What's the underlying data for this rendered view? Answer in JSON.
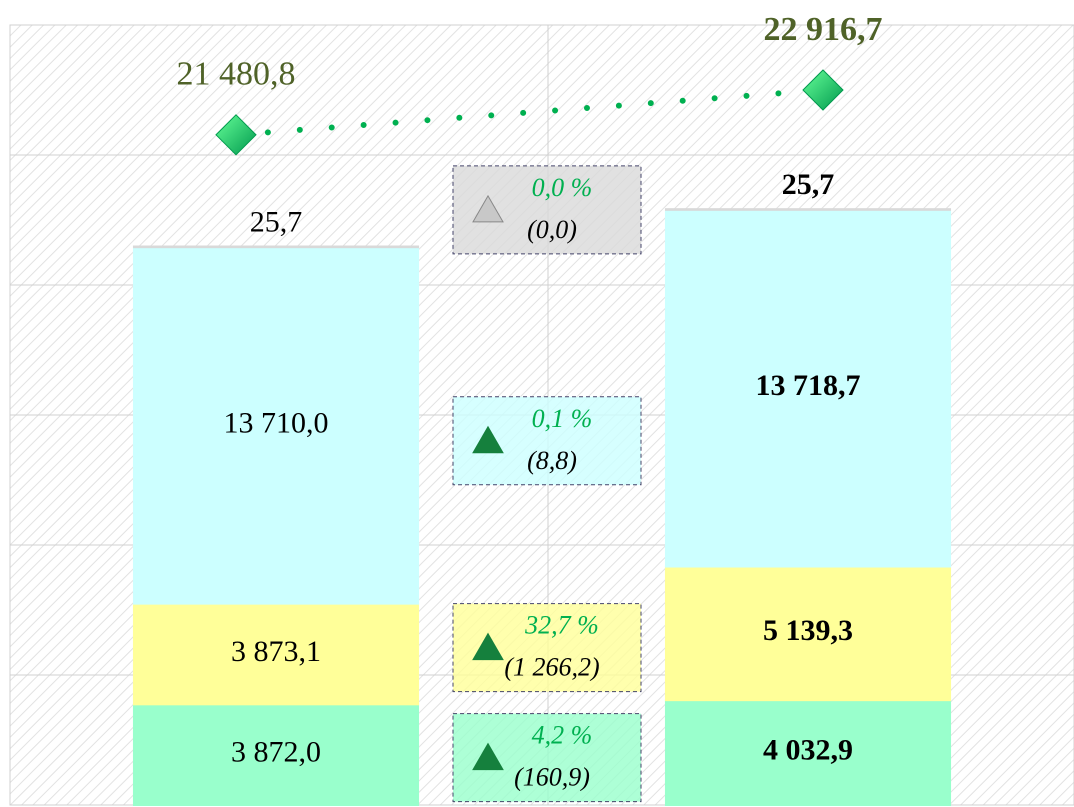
{
  "chart_data": {
    "type": "bar",
    "stacked": true,
    "categories": [
      null,
      null
    ],
    "ylim": [
      0,
      30000
    ],
    "yticks": [
      0,
      5000,
      10000,
      15000,
      20000,
      25000,
      30000
    ],
    "y2lim": [
      0,
      25000
    ],
    "grid": true,
    "series": [
      {
        "values": [
          3872.0,
          4032.9
        ],
        "value_labels": [
          "3 872,0",
          "4 032,9"
        ],
        "color": "#99ffcc",
        "change": 4.2,
        "change_label": "4,2 %",
        "diff": 160.9,
        "diff_label": "(160,9)"
      },
      {
        "values": [
          3873.1,
          5139.3
        ],
        "value_labels": [
          "3 873,1",
          "5 139,3"
        ],
        "color": "#ffff99",
        "change": 32.7,
        "change_label": "32,7 %",
        "diff": 1266.2,
        "diff_label": "(1 266,2)"
      },
      {
        "values": [
          13710.0,
          13718.7
        ],
        "value_labels": [
          "13 710,0",
          "13 718,7"
        ],
        "color": "#ccffff",
        "change": 0.1,
        "change_label": "0,1 %",
        "diff": 8.8,
        "diff_label": "(8,8)"
      },
      {
        "values": [
          25.7,
          25.7
        ],
        "value_labels": [
          "25,7",
          "25,7"
        ],
        "color": "#d9d9d9",
        "change": 0.0,
        "change_label": "0,0 %",
        "diff": 0.0,
        "diff_label": "(0,0)"
      },
      {
        "type": "line",
        "axis": "y2",
        "values": [
          21480.8,
          22916.7
        ],
        "value_labels": [
          "21 480,8",
          "22 916,7"
        ],
        "color": "#00b050"
      }
    ]
  }
}
